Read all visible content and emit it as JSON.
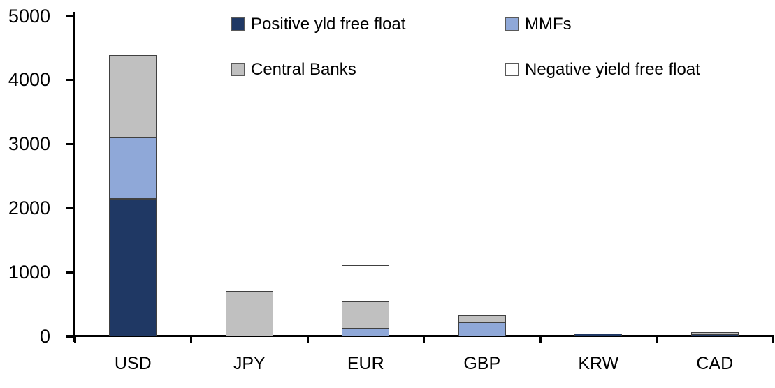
{
  "chart_data": {
    "type": "bar",
    "stacked": true,
    "title": "",
    "xlabel": "",
    "ylabel": "",
    "categories": [
      "USD",
      "JPY",
      "EUR",
      "GBP",
      "KRW",
      "CAD"
    ],
    "series": [
      {
        "name": "Positive yld free float",
        "color": "#1F3864",
        "values": [
          2150,
          0,
          0,
          0,
          45,
          35
        ]
      },
      {
        "name": "MMFs",
        "color": "#8FA8D8",
        "values": [
          950,
          0,
          120,
          220,
          0,
          0
        ]
      },
      {
        "name": "Central Banks",
        "color": "#C0C0C0",
        "values": [
          1290,
          700,
          425,
          110,
          0,
          35
        ]
      },
      {
        "name": "Negative yield free float",
        "color": "#FFFFFF",
        "values": [
          0,
          1150,
          565,
          0,
          0,
          0
        ]
      }
    ],
    "totals": [
      4390,
      1850,
      1110,
      330,
      45,
      70
    ],
    "ylim": [
      0,
      5000
    ],
    "y_ticks": [
      0,
      1000,
      2000,
      3000,
      4000,
      5000
    ],
    "grid": false,
    "legend_position": "top",
    "legend_rows": [
      [
        "Positive yld free float",
        "MMFs"
      ],
      [
        "Central Banks",
        "Negative yield free float"
      ]
    ],
    "axis_color": "#000000",
    "segment_border_color": "#404040"
  }
}
